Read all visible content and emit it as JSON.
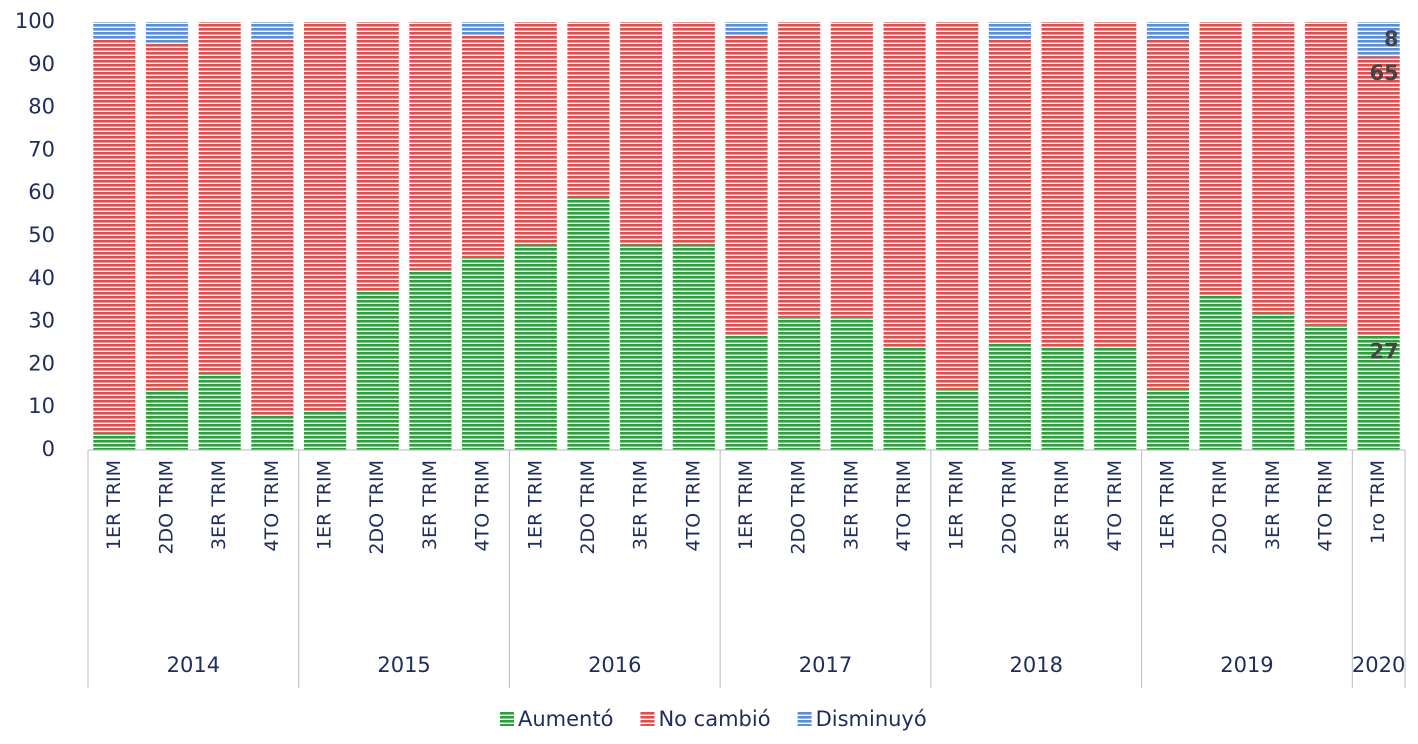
{
  "chart_data": {
    "type": "stacked_bar",
    "categories": [
      "1ER TRIM",
      "2DO TRIM",
      "3ER TRIM",
      "4TO TRIM",
      "1ER TRIM",
      "2DO TRIM",
      "3ER TRIM",
      "4TO TRIM",
      "1ER TRIM",
      "2DO TRIM",
      "3ER TRIM",
      "4TO TRIM",
      "1ER TRIM",
      "2DO TRIM",
      "3ER TRIM",
      "4TO TRIM",
      "1ER TRIM",
      "2DO TRIM",
      "3ER TRIM",
      "4TO TRIM",
      "1ER TRIM",
      "2DO TRIM",
      "3ER TRIM",
      "4TO TRIM",
      "1ro TRIM"
    ],
    "groups": [
      {
        "name": "2014",
        "size": 4
      },
      {
        "name": "2015",
        "size": 4
      },
      {
        "name": "2016",
        "size": 4
      },
      {
        "name": "2017",
        "size": 4
      },
      {
        "name": "2018",
        "size": 4
      },
      {
        "name": "2019",
        "size": 4
      },
      {
        "name": "2020",
        "size": 1
      }
    ],
    "series": [
      {
        "name": "Aumentó",
        "color": "#2e9e3e",
        "values": [
          4,
          14,
          18,
          8,
          9,
          37,
          42,
          45,
          48,
          59,
          48,
          48,
          27,
          31,
          31,
          24,
          14,
          25,
          24,
          24,
          14,
          36,
          32,
          29,
          27
        ]
      },
      {
        "name": "No cambió",
        "color": "#d9524f",
        "values": [
          92,
          81,
          82,
          88,
          91,
          63,
          58,
          52,
          52,
          41,
          52,
          52,
          70,
          69,
          69,
          76,
          86,
          71,
          76,
          76,
          82,
          64,
          68,
          71,
          65
        ]
      },
      {
        "name": "Disminuyó",
        "color": "#5b8fd4",
        "values": [
          4,
          5,
          0,
          4,
          0,
          0,
          0,
          3,
          0,
          0,
          0,
          0,
          3,
          0,
          0,
          0,
          0,
          4,
          0,
          0,
          4,
          0,
          0,
          0,
          8
        ]
      }
    ],
    "ylim": [
      0,
      100
    ],
    "yticks": [
      0,
      10,
      20,
      30,
      40,
      50,
      60,
      70,
      80,
      90,
      100
    ]
  }
}
